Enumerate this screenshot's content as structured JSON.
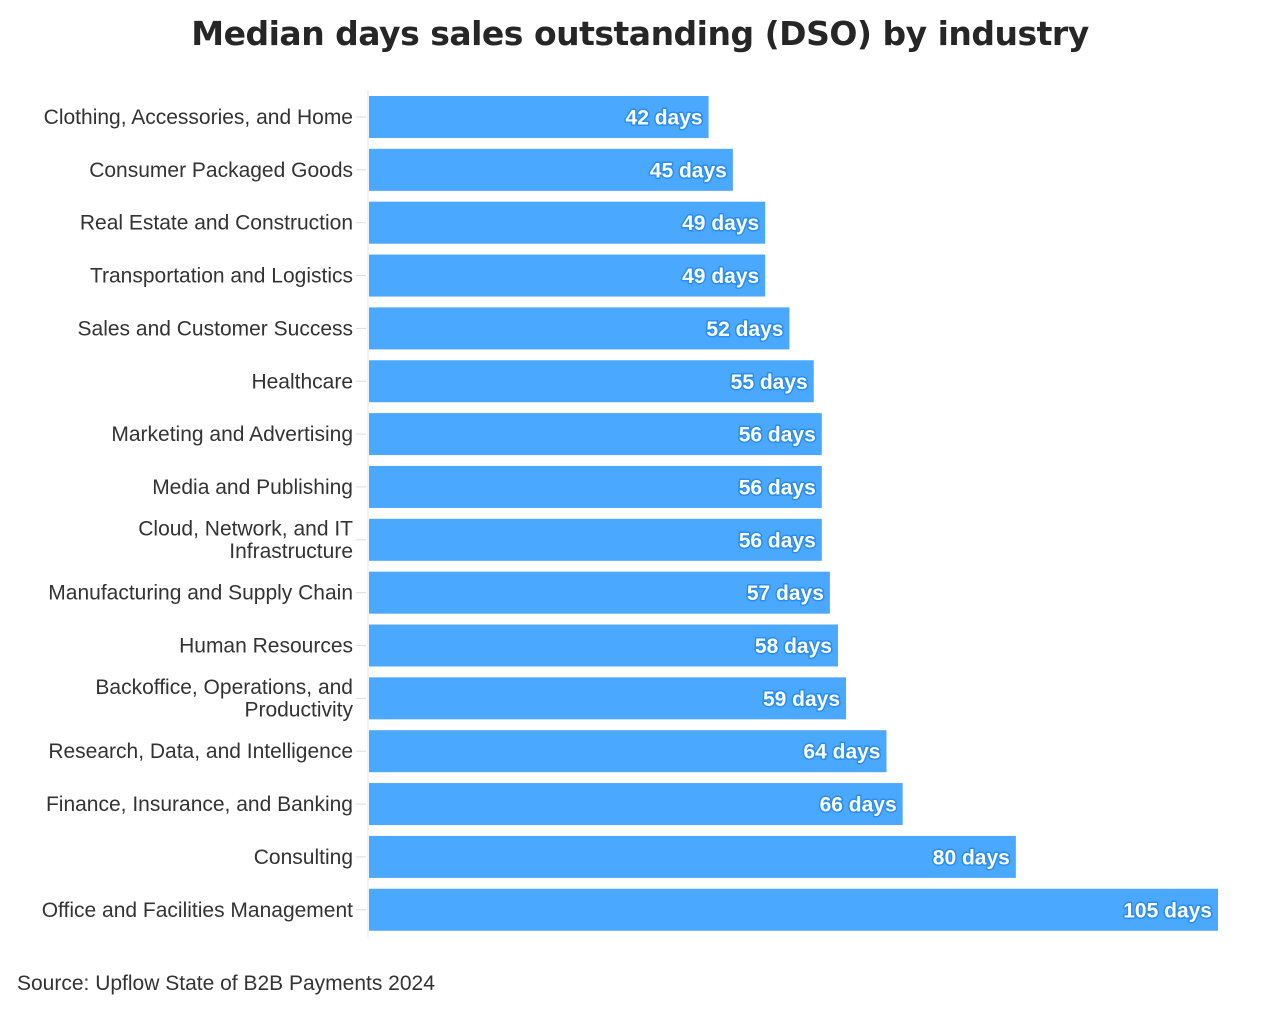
{
  "chart_data": {
    "type": "bar",
    "orientation": "horizontal",
    "title": "Median days sales outstanding (DSO) by industry",
    "source": "Source: Upflow State of B2B Payments 2024",
    "bar_color": "#4aa8ff",
    "value_suffix": " days",
    "grid": false,
    "categories": [
      [
        "Clothing, Accessories, and Home"
      ],
      [
        "Consumer Packaged Goods"
      ],
      [
        "Real Estate and Construction"
      ],
      [
        "Transportation and Logistics"
      ],
      [
        "Sales and Customer Success"
      ],
      [
        "Healthcare"
      ],
      [
        "Marketing and Advertising"
      ],
      [
        "Media and Publishing"
      ],
      [
        "Cloud, Network, and IT",
        "Infrastructure"
      ],
      [
        "Manufacturing and Supply Chain"
      ],
      [
        "Human Resources"
      ],
      [
        "Backoffice, Operations, and",
        "Productivity"
      ],
      [
        "Research, Data, and Intelligence"
      ],
      [
        "Finance, Insurance, and Banking"
      ],
      [
        "Consulting"
      ],
      [
        "Office and Facilities Management"
      ]
    ],
    "values": [
      42,
      45,
      49,
      49,
      52,
      55,
      56,
      56,
      56,
      57,
      58,
      59,
      64,
      66,
      80,
      105
    ],
    "data_labels": [
      "42 days",
      "45 days",
      "49 days",
      "49 days",
      "52 days",
      "55 days",
      "56 days",
      "56 days",
      "56 days",
      "57 days",
      "58 days",
      "59 days",
      "64 days",
      "66 days",
      "80 days",
      "105 days"
    ],
    "xlim": [
      0,
      105
    ]
  }
}
